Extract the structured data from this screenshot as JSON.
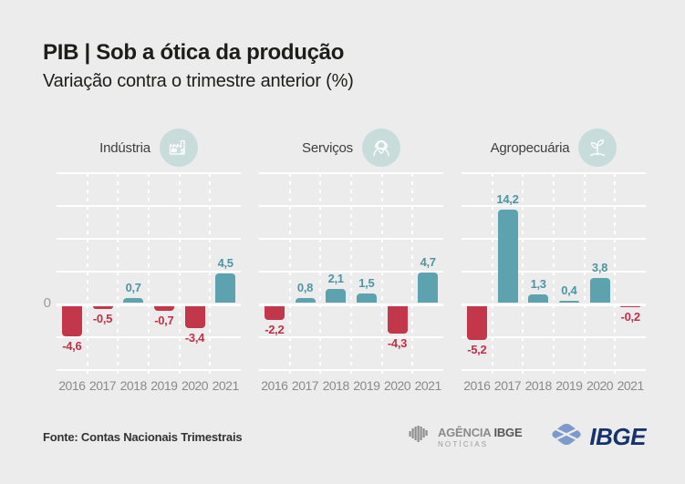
{
  "header": {
    "title": "PIB | Sob a ótica da produção",
    "subtitle": "Variação contra o trimestre anterior (%)"
  },
  "axis": {
    "zero_label": "0"
  },
  "chart_data": {
    "type": "bar",
    "categories": [
      "2016",
      "2017",
      "2018",
      "2019",
      "2020",
      "2021"
    ],
    "ylim": [
      -10,
      20
    ],
    "grid_step": 5,
    "grid": "on",
    "legend": "none",
    "xlabel": "",
    "ylabel": "",
    "colors": {
      "positive_bar": "#5DA2AF",
      "negative_bar": "#C23749",
      "positive_label": "#4E95A4",
      "negative_label": "#C22F48"
    },
    "panels": [
      {
        "name": "Indústria",
        "icon": "factory-icon",
        "values": [
          -4.6,
          -0.5,
          0.7,
          -0.7,
          -3.4,
          4.5
        ],
        "labels": [
          "-4,6",
          "-0,5",
          "0,7",
          "-0,7",
          "-3,4",
          "4,5"
        ]
      },
      {
        "name": "Serviços",
        "icon": "headset-person-icon",
        "values": [
          -2.2,
          0.8,
          2.1,
          1.5,
          -4.3,
          4.7
        ],
        "labels": [
          "-2,2",
          "0,8",
          "2,1",
          "1,5",
          "-4,3",
          "4,7"
        ]
      },
      {
        "name": "Agropecuária",
        "icon": "plant-sprout-icon",
        "values": [
          -5.2,
          14.2,
          1.3,
          0.4,
          3.8,
          -0.2
        ],
        "labels": [
          "-5,2",
          "14,2",
          "1,3",
          "0,4",
          "3,8",
          "-0,2"
        ]
      }
    ]
  },
  "footer": {
    "source": "Fonte: Contas Nacionais Trimestrais",
    "agencia_logo": {
      "line1_a": "AGÊNCIA",
      "line1_b": "IBGE",
      "line2": "NOTÍCIAS"
    },
    "ibge_logo": {
      "text": "IBGE"
    }
  }
}
